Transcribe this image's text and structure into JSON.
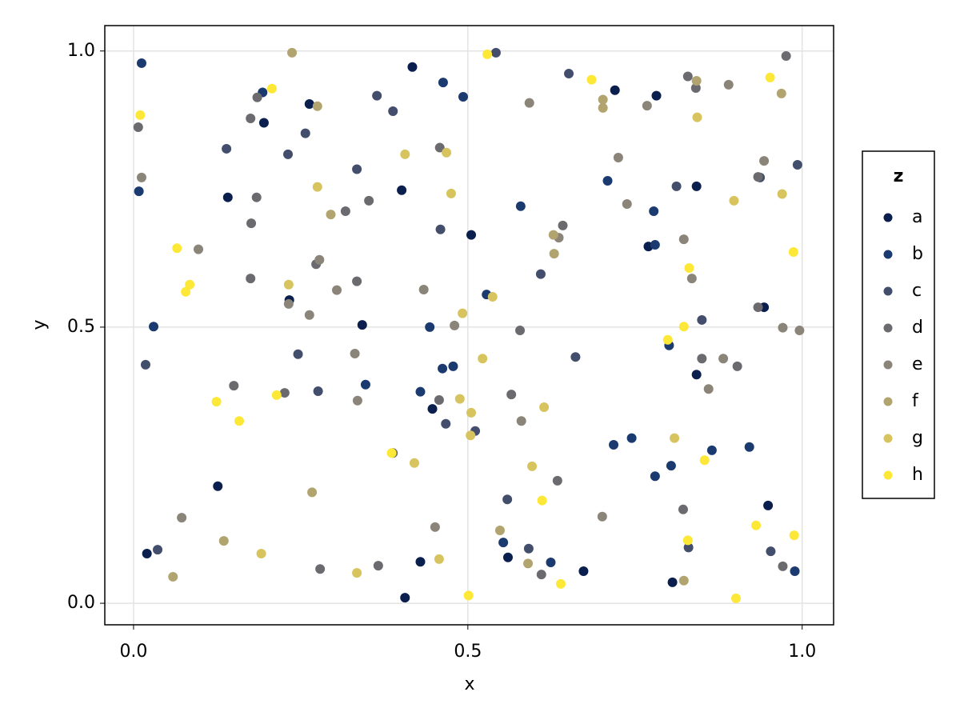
{
  "chart_data": {
    "type": "scatter",
    "x_label": "x",
    "y_label": "y",
    "legend_title": "z",
    "legend_position": "right",
    "grid": true,
    "xlim": [
      -0.043,
      1.047
    ],
    "ylim": [
      -0.039,
      1.046
    ],
    "xticks": [
      {
        "value": 0,
        "label": "0.0"
      },
      {
        "value": 0.5,
        "label": "0.5"
      },
      {
        "value": 1,
        "label": "1.0"
      }
    ],
    "yticks": [
      {
        "value": 0,
        "label": "0.0"
      },
      {
        "value": 0.5,
        "label": "0.5"
      },
      {
        "value": 1,
        "label": "1.0"
      }
    ],
    "series": [
      {
        "name": "a",
        "color": "#0a1f4d",
        "x": [
          0.263,
          0.195,
          0.141,
          0.417,
          0.401,
          0.505,
          0.342,
          0.233,
          0.126,
          0.02,
          0.447,
          0.429,
          0.56,
          0.673,
          0.72,
          0.782,
          0.77,
          0.842,
          0.842,
          0.943,
          0.949,
          0.806,
          0.406
        ],
        "y": [
          0.904,
          0.87,
          0.735,
          0.971,
          0.748,
          0.667,
          0.504,
          0.549,
          0.212,
          0.09,
          0.352,
          0.075,
          0.083,
          0.058,
          0.929,
          0.919,
          0.646,
          0.414,
          0.755,
          0.536,
          0.177,
          0.038,
          0.01
        ]
      },
      {
        "name": "b",
        "color": "#1b3b70",
        "x": [
          0.012,
          0.03,
          0.193,
          0.347,
          0.463,
          0.493,
          0.579,
          0.709,
          0.778,
          0.78,
          0.801,
          0.528,
          0.462,
          0.478,
          0.429,
          0.553,
          0.624,
          0.718,
          0.745,
          0.865,
          0.921,
          0.78,
          0.804,
          0.989,
          0.008,
          0.443
        ],
        "y": [
          0.978,
          0.501,
          0.925,
          0.396,
          0.943,
          0.917,
          0.719,
          0.765,
          0.71,
          0.649,
          0.467,
          0.559,
          0.425,
          0.429,
          0.383,
          0.11,
          0.074,
          0.287,
          0.299,
          0.277,
          0.283,
          0.23,
          0.249,
          0.058,
          0.746,
          0.5
        ]
      },
      {
        "name": "c",
        "color": "#434e6c",
        "x": [
          0.139,
          0.231,
          0.257,
          0.334,
          0.364,
          0.459,
          0.036,
          0.018,
          0.246,
          0.276,
          0.511,
          0.467,
          0.559,
          0.591,
          0.661,
          0.85,
          0.83,
          0.953,
          0.993,
          0.937,
          0.651,
          0.812,
          0.388,
          0.609,
          0.542
        ],
        "y": [
          0.823,
          0.813,
          0.851,
          0.786,
          0.919,
          0.677,
          0.097,
          0.432,
          0.451,
          0.384,
          0.312,
          0.325,
          0.188,
          0.099,
          0.446,
          0.513,
          0.101,
          0.094,
          0.794,
          0.771,
          0.959,
          0.755,
          0.891,
          0.596,
          0.997
        ]
      },
      {
        "name": "d",
        "color": "#6b6b6f",
        "x": [
          0.007,
          0.185,
          0.175,
          0.176,
          0.184,
          0.175,
          0.273,
          0.334,
          0.317,
          0.458,
          0.578,
          0.565,
          0.642,
          0.634,
          0.61,
          0.366,
          0.279,
          0.15,
          0.226,
          0.388,
          0.352,
          0.829,
          0.841,
          0.976,
          0.934,
          0.934,
          0.85,
          0.903,
          0.822,
          0.971,
          0.457
        ],
        "y": [
          0.862,
          0.916,
          0.878,
          0.688,
          0.735,
          0.588,
          0.614,
          0.583,
          0.71,
          0.825,
          0.494,
          0.378,
          0.684,
          0.222,
          0.052,
          0.068,
          0.062,
          0.394,
          0.381,
          0.272,
          0.729,
          0.954,
          0.933,
          0.991,
          0.772,
          0.536,
          0.443,
          0.429,
          0.17,
          0.067,
          0.368
        ]
      },
      {
        "name": "e",
        "color": "#8b8579",
        "x": [
          0.012,
          0.097,
          0.331,
          0.304,
          0.278,
          0.263,
          0.232,
          0.335,
          0.434,
          0.48,
          0.58,
          0.701,
          0.768,
          0.738,
          0.725,
          0.823,
          0.835,
          0.89,
          0.943,
          0.971,
          0.996,
          0.882,
          0.86,
          0.592,
          0.636,
          0.072,
          0.451
        ],
        "y": [
          0.771,
          0.641,
          0.452,
          0.567,
          0.622,
          0.522,
          0.542,
          0.367,
          0.568,
          0.503,
          0.33,
          0.157,
          0.901,
          0.723,
          0.807,
          0.659,
          0.588,
          0.939,
          0.801,
          0.499,
          0.494,
          0.443,
          0.388,
          0.906,
          0.662,
          0.155,
          0.138
        ]
      },
      {
        "name": "f",
        "color": "#b2a46f",
        "x": [
          0.237,
          0.275,
          0.295,
          0.059,
          0.135,
          0.267,
          0.548,
          0.59,
          0.702,
          0.702,
          0.842,
          0.969,
          0.823,
          0.628,
          0.629
        ],
        "y": [
          0.997,
          0.9,
          0.704,
          0.048,
          0.113,
          0.201,
          0.132,
          0.072,
          0.897,
          0.912,
          0.946,
          0.923,
          0.041,
          0.667,
          0.633
        ]
      },
      {
        "name": "g",
        "color": "#d8c45e",
        "x": [
          0.275,
          0.406,
          0.468,
          0.475,
          0.232,
          0.492,
          0.488,
          0.505,
          0.504,
          0.522,
          0.537,
          0.596,
          0.614,
          0.42,
          0.334,
          0.191,
          0.457,
          0.97,
          0.898,
          0.843,
          0.809
        ],
        "y": [
          0.754,
          0.813,
          0.816,
          0.742,
          0.577,
          0.525,
          0.37,
          0.345,
          0.304,
          0.443,
          0.555,
          0.248,
          0.355,
          0.254,
          0.055,
          0.09,
          0.08,
          0.741,
          0.729,
          0.88,
          0.299
        ]
      },
      {
        "name": "h",
        "color": "#fde838",
        "x": [
          0.01,
          0.207,
          0.529,
          0.685,
          0.065,
          0.084,
          0.078,
          0.124,
          0.158,
          0.214,
          0.386,
          0.611,
          0.639,
          0.501,
          0.799,
          0.831,
          0.823,
          0.854,
          0.931,
          0.988,
          0.901,
          0.829,
          0.987,
          0.952
        ],
        "y": [
          0.884,
          0.932,
          0.994,
          0.948,
          0.643,
          0.577,
          0.564,
          0.365,
          0.33,
          0.377,
          0.272,
          0.186,
          0.035,
          0.014,
          0.477,
          0.607,
          0.501,
          0.259,
          0.141,
          0.123,
          0.009,
          0.114,
          0.636,
          0.952
        ]
      }
    ]
  }
}
